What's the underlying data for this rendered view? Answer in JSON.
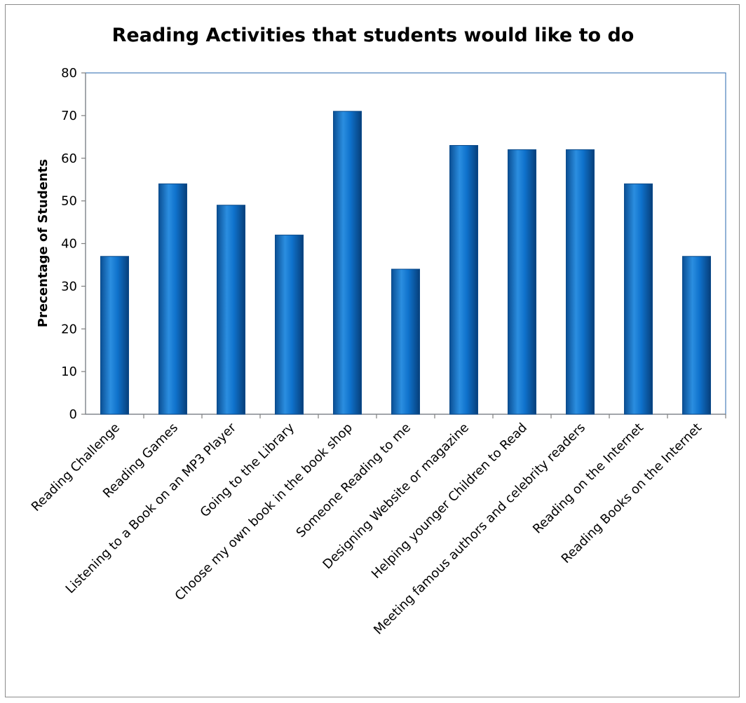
{
  "chart_data": {
    "type": "bar",
    "title": "Reading Activities that students would like to do",
    "xlabel": "",
    "ylabel": "Precentage of Students",
    "ylim": [
      0,
      80
    ],
    "yticks": [
      0,
      10,
      20,
      30,
      40,
      50,
      60,
      70,
      80
    ],
    "grid": false,
    "legend": "none",
    "bar_color": "#0a6cc4",
    "categories": [
      "Reading Challenge",
      "Reading Games",
      "Listening to a Book on an MP3 Player",
      "Going to the Library",
      "Choose my own book in the book shop",
      "Someone Reading to me",
      "Designing Website or magazine",
      "Helping younger Children to Read",
      "Meeting famous authors and celebrity readers",
      "Reading on the Internet",
      "Reading Books on the Internet"
    ],
    "values": [
      37,
      54,
      49,
      42,
      71,
      34,
      63,
      62,
      62,
      54,
      37
    ]
  }
}
